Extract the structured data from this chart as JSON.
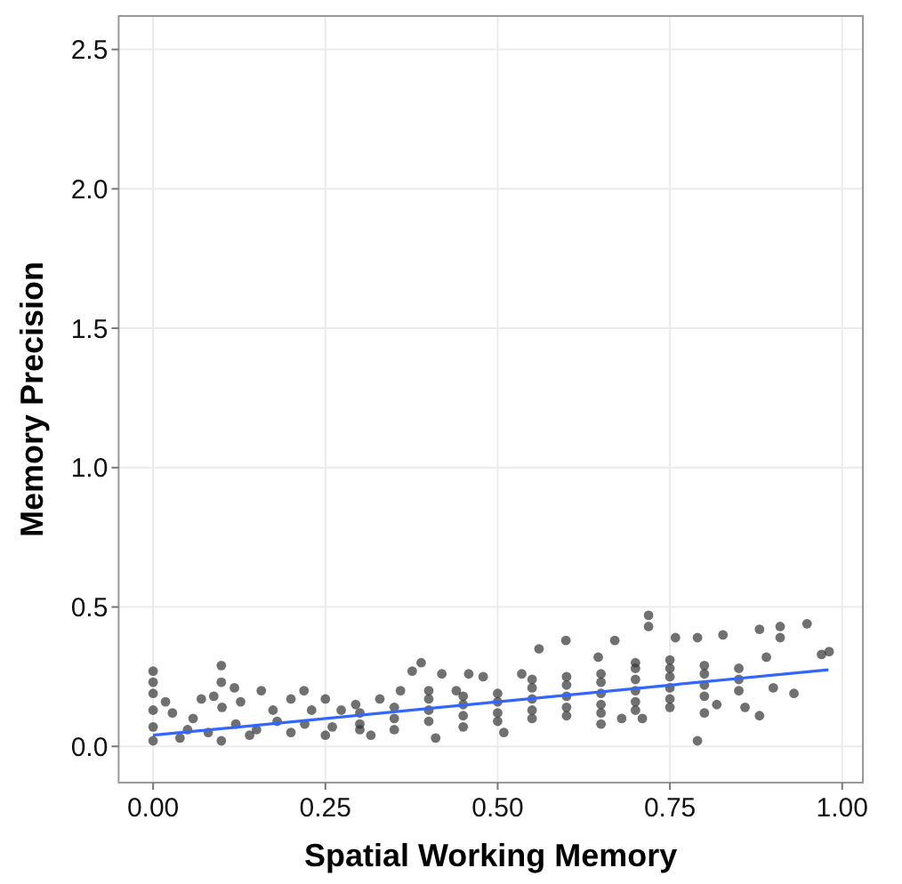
{
  "chart_data": {
    "type": "scatter",
    "xlabel": "Spatial Working Memory",
    "ylabel": "Memory Precision",
    "xlim": [
      -0.05,
      1.03
    ],
    "ylim": [
      -0.13,
      2.62
    ],
    "xticks": [
      {
        "value": 0,
        "label": "0.00"
      },
      {
        "value": 0.25,
        "label": "0.25"
      },
      {
        "value": 0.5,
        "label": "0.50"
      },
      {
        "value": 0.75,
        "label": "0.75"
      },
      {
        "value": 1,
        "label": "1.00"
      }
    ],
    "yticks": [
      {
        "value": 0,
        "label": "0.0"
      },
      {
        "value": 0.5,
        "label": "0.5"
      },
      {
        "value": 1,
        "label": "1.0"
      },
      {
        "value": 1.5,
        "label": "1.5"
      },
      {
        "value": 2,
        "label": "2.0"
      },
      {
        "value": 2.5,
        "label": "2.5"
      }
    ],
    "grid": true,
    "series": [
      {
        "color": "#333333",
        "marker": "circle",
        "x": [
          0,
          0,
          0,
          0,
          0,
          0,
          0.018,
          0.028,
          0.039,
          0.058,
          0.07,
          0.088,
          0.099,
          0.099,
          0.1,
          0.099,
          0.118,
          0.127,
          0.14,
          0.157,
          0.174,
          0.2,
          0.219,
          0.23,
          0.25,
          0.25,
          0.273,
          0.294,
          0.316,
          0.329,
          0.35,
          0.359,
          0.376,
          0.389,
          0.41,
          0.419,
          0.44,
          0.458,
          0.479,
          0.509,
          0.535,
          0.56,
          0.599,
          0.646,
          0.67,
          0.68,
          0.719,
          0.719,
          0.71,
          0.758,
          0.79,
          0.79,
          0.827,
          0.818,
          0.859,
          0.88,
          0.88,
          0.91,
          0.91,
          0.949,
          0.93,
          0.9,
          0.97,
          0.981,
          0.89,
          0.05,
          0.08,
          0.12,
          0.15,
          0.18,
          0.2,
          0.22,
          0.26,
          0.3,
          0.3,
          0.3,
          0.35,
          0.35,
          0.4,
          0.4,
          0.4,
          0.4,
          0.45,
          0.45,
          0.45,
          0.45,
          0.5,
          0.5,
          0.5,
          0.5,
          0.55,
          0.55,
          0.55,
          0.55,
          0.55,
          0.6,
          0.6,
          0.6,
          0.6,
          0.6,
          0.65,
          0.65,
          0.65,
          0.65,
          0.65,
          0.65,
          0.7,
          0.7,
          0.7,
          0.7,
          0.7,
          0.7,
          0.75,
          0.75,
          0.75,
          0.75,
          0.75,
          0.75,
          0.8,
          0.8,
          0.8,
          0.8,
          0.8,
          0.85,
          0.85,
          0.85
        ],
        "values": [
          0.27,
          0.23,
          0.19,
          0.13,
          0.07,
          0.02,
          0.16,
          0.12,
          0.03,
          0.1,
          0.17,
          0.18,
          0.29,
          0.23,
          0.14,
          0.02,
          0.21,
          0.16,
          0.04,
          0.2,
          0.13,
          0.17,
          0.2,
          0.13,
          0.17,
          0.04,
          0.13,
          0.15,
          0.04,
          0.17,
          0.06,
          0.2,
          0.27,
          0.3,
          0.03,
          0.26,
          0.2,
          0.26,
          0.25,
          0.05,
          0.26,
          0.35,
          0.38,
          0.32,
          0.38,
          0.1,
          0.47,
          0.43,
          0.1,
          0.39,
          0.02,
          0.39,
          0.4,
          0.15,
          0.14,
          0.11,
          0.42,
          0.43,
          0.39,
          0.44,
          0.19,
          0.21,
          0.33,
          0.34,
          0.32,
          0.06,
          0.05,
          0.08,
          0.06,
          0.09,
          0.05,
          0.08,
          0.07,
          0.12,
          0.08,
          0.06,
          0.1,
          0.14,
          0.09,
          0.13,
          0.17,
          0.2,
          0.11,
          0.15,
          0.18,
          0.07,
          0.12,
          0.16,
          0.19,
          0.09,
          0.13,
          0.17,
          0.21,
          0.1,
          0.24,
          0.14,
          0.18,
          0.22,
          0.11,
          0.25,
          0.15,
          0.19,
          0.23,
          0.26,
          0.12,
          0.08,
          0.16,
          0.2,
          0.24,
          0.28,
          0.13,
          0.3,
          0.17,
          0.21,
          0.25,
          0.28,
          0.14,
          0.31,
          0.18,
          0.22,
          0.26,
          0.29,
          0.12,
          0.2,
          0.24,
          0.28
        ]
      },
      {
        "type": "line",
        "color": "#3366ff",
        "x": [
          0,
          0.98
        ],
        "values": [
          0.04,
          0.275
        ],
        "marker": "none",
        "line_style": "solid"
      }
    ]
  }
}
